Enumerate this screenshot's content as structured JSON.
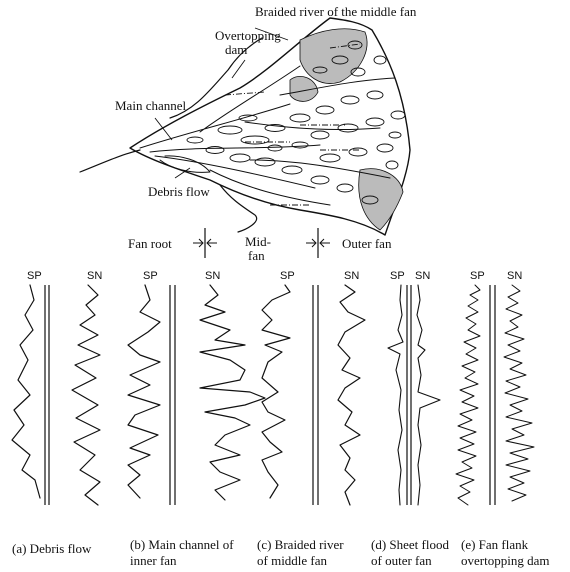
{
  "map": {
    "labels": {
      "braided_river": "Braided river of the middle fan",
      "overtopping_dam_line1": "Overtopping",
      "overtopping_dam_line2": "dam",
      "main_channel": "Main channel",
      "debris_flow": "Debris flow"
    }
  },
  "zones": {
    "fan_root": "Fan root",
    "mid_fan_line1": "Mid-",
    "mid_fan_line2": "fan",
    "outer_fan": "Outer fan"
  },
  "log_headers": [
    "SP",
    "SN",
    "SP",
    "SN",
    "SP",
    "SN",
    "SP",
    "SN",
    "SP",
    "SN"
  ],
  "captions": [
    {
      "line1": "(a) Debris flow",
      "line2": ""
    },
    {
      "line1": "(b) Main channel of",
      "line2": "inner fan"
    },
    {
      "line1": "(c) Braided river",
      "line2": "of middle fan"
    },
    {
      "line1": "(d) Sheet flood",
      "line2": "of outer fan"
    },
    {
      "line1": "(e) Fan flank",
      "line2": "overtopping dam"
    }
  ]
}
